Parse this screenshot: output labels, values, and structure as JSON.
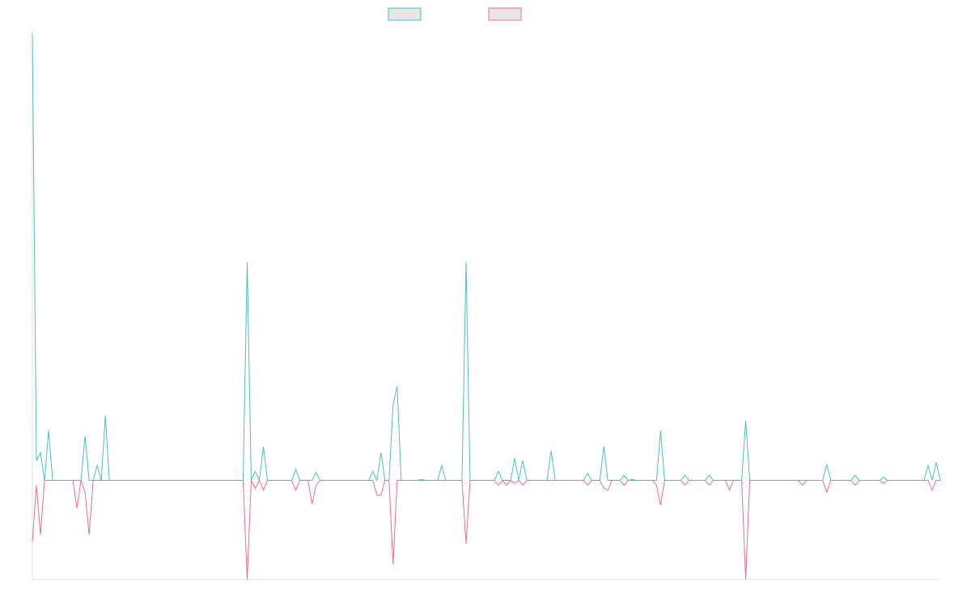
{
  "chart_data": {
    "type": "line",
    "title": "",
    "xlabel": "",
    "ylabel": "",
    "x_count": 224,
    "ylim": [
      -1,
      4.55
    ],
    "grid": false,
    "legend_placement": "top-center",
    "series": [
      {
        "color": "#4bc0c0",
        "fill": "#e6e6e6",
        "spikes": [
          [
            0,
            4.5
          ],
          [
            1,
            0.2
          ],
          [
            2,
            0.28
          ],
          [
            3,
            0
          ],
          [
            4,
            0.5
          ],
          [
            5,
            0
          ],
          [
            6,
            0
          ],
          [
            10,
            0
          ],
          [
            11,
            0
          ],
          [
            12,
            0
          ],
          [
            13,
            0.45
          ],
          [
            14,
            0
          ],
          [
            15,
            0
          ],
          [
            16,
            0.15
          ],
          [
            17,
            0
          ],
          [
            18,
            0.65
          ],
          [
            19,
            0
          ],
          [
            20,
            0
          ],
          [
            53,
            2.2
          ],
          [
            54,
            0
          ],
          [
            55,
            0.09
          ],
          [
            56,
            0
          ],
          [
            57,
            0.34
          ],
          [
            58,
            0
          ],
          [
            65,
            0.11
          ],
          [
            66,
            0
          ],
          [
            70,
            0.08
          ],
          [
            71,
            0
          ],
          [
            84,
            0.09
          ],
          [
            85,
            0
          ],
          [
            86,
            0.28
          ],
          [
            87,
            0
          ],
          [
            89,
            0.76
          ],
          [
            90,
            0.95
          ],
          [
            91,
            0
          ],
          [
            96,
            0.01
          ],
          [
            101,
            0.15
          ],
          [
            102,
            0
          ],
          [
            106,
            0
          ],
          [
            107,
            2.2
          ],
          [
            108,
            0
          ],
          [
            110,
            0
          ],
          [
            115,
            0.09
          ],
          [
            116,
            0
          ],
          [
            117,
            0
          ],
          [
            119,
            0.22
          ],
          [
            120,
            0
          ],
          [
            121,
            0.2
          ],
          [
            122,
            0
          ],
          [
            128,
            0.3
          ],
          [
            129,
            0
          ],
          [
            137,
            0.07
          ],
          [
            138,
            0
          ],
          [
            141,
            0.34
          ],
          [
            142,
            0
          ],
          [
            146,
            0.05
          ],
          [
            147,
            0
          ],
          [
            148,
            0.01
          ],
          [
            154,
            0
          ],
          [
            155,
            0.5
          ],
          [
            156,
            0
          ],
          [
            161,
            0.05
          ],
          [
            162,
            0
          ],
          [
            167,
            0.05
          ],
          [
            168,
            0
          ],
          [
            176,
            0.6
          ],
          [
            177,
            0
          ],
          [
            184,
            0
          ],
          [
            189,
            0
          ],
          [
            190,
            0
          ],
          [
            195,
            0
          ],
          [
            196,
            0.16
          ],
          [
            197,
            0
          ],
          [
            203,
            0.05
          ],
          [
            204,
            0
          ],
          [
            210,
            0.03
          ],
          [
            221,
            0.15
          ],
          [
            222,
            0
          ],
          [
            223,
            0.18
          ],
          [
            224,
            0
          ]
        ]
      },
      {
        "color": "#f06b8f",
        "fill": "#e6e6e6",
        "spikes": [
          [
            0,
            -0.62
          ],
          [
            1,
            -0.05
          ],
          [
            2,
            -0.55
          ],
          [
            3,
            0
          ],
          [
            4,
            0
          ],
          [
            5,
            0
          ],
          [
            6,
            0
          ],
          [
            10,
            0
          ],
          [
            11,
            -0.28
          ],
          [
            12,
            0
          ],
          [
            13,
            -0.12
          ],
          [
            14,
            -0.55
          ],
          [
            15,
            0
          ],
          [
            16,
            0
          ],
          [
            53,
            -1
          ],
          [
            54,
            0
          ],
          [
            55,
            -0.08
          ],
          [
            56,
            0
          ],
          [
            57,
            -0.1
          ],
          [
            58,
            0
          ],
          [
            65,
            -0.1
          ],
          [
            66,
            0
          ],
          [
            69,
            -0.24
          ],
          [
            70,
            -0.05
          ],
          [
            71,
            0
          ],
          [
            84,
            0
          ],
          [
            85,
            -0.15
          ],
          [
            86,
            -0.15
          ],
          [
            87,
            0
          ],
          [
            89,
            -0.85
          ],
          [
            90,
            0
          ],
          [
            106,
            0
          ],
          [
            107,
            -0.64
          ],
          [
            108,
            0
          ],
          [
            110,
            0
          ],
          [
            115,
            -0.05
          ],
          [
            116,
            0
          ],
          [
            117,
            -0.05
          ],
          [
            118,
            0
          ],
          [
            119,
            -0.03
          ],
          [
            120,
            0
          ],
          [
            121,
            -0.05
          ],
          [
            122,
            0
          ],
          [
            137,
            -0.05
          ],
          [
            138,
            0
          ],
          [
            141,
            -0.08
          ],
          [
            142,
            -0.1
          ],
          [
            143,
            0
          ],
          [
            146,
            -0.05
          ],
          [
            147,
            0
          ],
          [
            154,
            -0.05
          ],
          [
            155,
            -0.25
          ],
          [
            156,
            0
          ],
          [
            161,
            -0.05
          ],
          [
            162,
            0
          ],
          [
            167,
            -0.05
          ],
          [
            168,
            0
          ],
          [
            171,
            0
          ],
          [
            172,
            -0.1
          ],
          [
            173,
            0
          ],
          [
            176,
            -1
          ],
          [
            177,
            0
          ],
          [
            184,
            0
          ],
          [
            189,
            0
          ],
          [
            190,
            -0.05
          ],
          [
            191,
            0
          ],
          [
            196,
            -0.12
          ],
          [
            197,
            0
          ],
          [
            203,
            -0.05
          ],
          [
            204,
            0
          ],
          [
            210,
            -0.03
          ],
          [
            222,
            -0.1
          ],
          [
            223,
            0
          ],
          [
            224,
            0
          ]
        ]
      }
    ]
  }
}
